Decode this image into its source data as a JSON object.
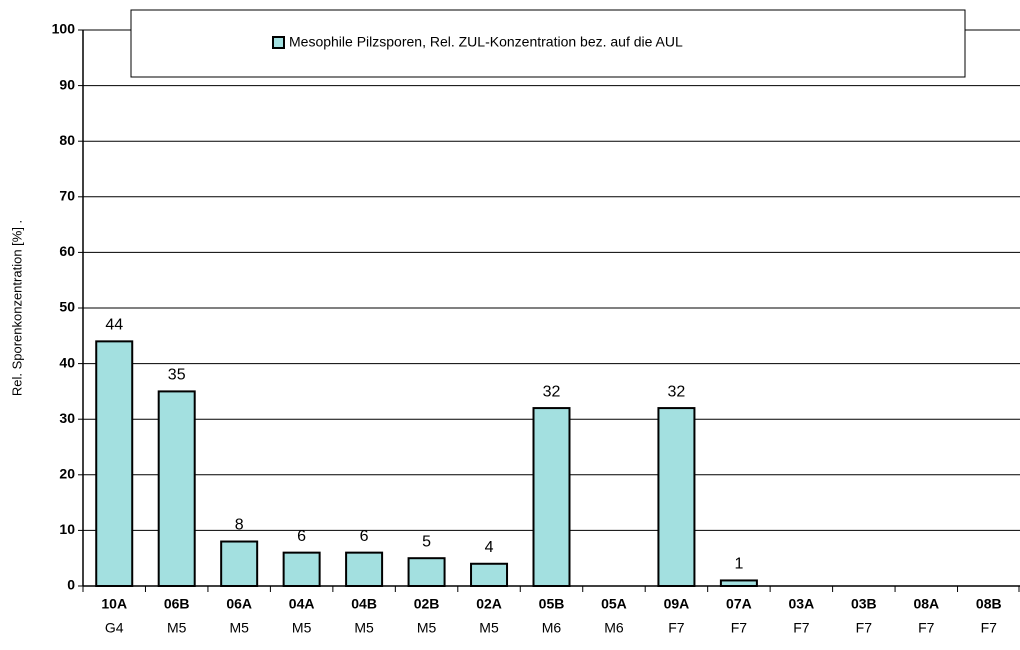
{
  "chart_data": {
    "type": "bar",
    "y_axis_label": "Rel. Sporenkonzentration [%] .",
    "categories": [
      "10A",
      "06B",
      "06A",
      "04A",
      "04B",
      "02B",
      "02A",
      "05B",
      "05A",
      "09A",
      "07A",
      "03A",
      "03B",
      "08A",
      "08B"
    ],
    "subcategories": [
      "G4",
      "M5",
      "M5",
      "M5",
      "M5",
      "M5",
      "M5",
      "M6",
      "M6",
      "F7",
      "F7",
      "F7",
      "F7",
      "F7",
      "F7"
    ],
    "series": [
      {
        "name": "Mesophile Pilzsporen, Rel. ZUL-Konzentration bez. auf die AUL",
        "color": "#a3e0e0",
        "values": [
          44,
          35,
          8,
          6,
          6,
          5,
          4,
          32,
          0,
          32,
          1,
          0,
          0,
          0,
          0
        ],
        "value_labels": [
          "44",
          "35",
          "8",
          "6",
          "6",
          "5",
          "4",
          "32",
          null,
          "32",
          "1",
          null,
          null,
          null,
          null
        ]
      }
    ],
    "ylim": [
      0,
      100
    ],
    "yticks": [
      0,
      10,
      20,
      30,
      40,
      50,
      60,
      70,
      80,
      90,
      100
    ],
    "grid": true
  }
}
